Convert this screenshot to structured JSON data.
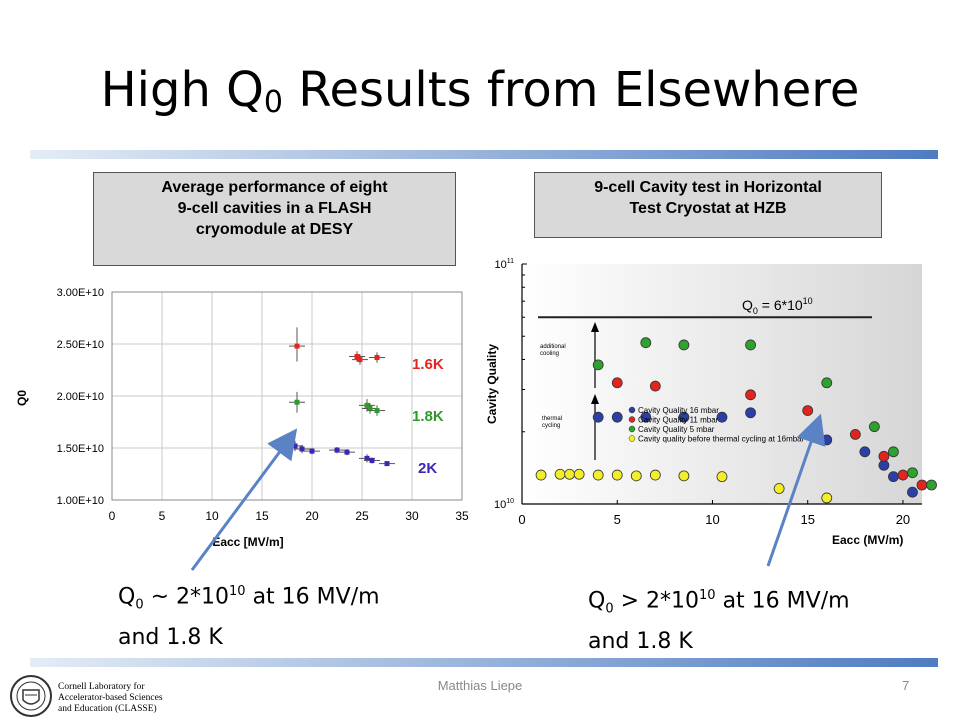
{
  "slide": {
    "title_main": "High Q",
    "title_sub": "0",
    "title_rest": " Results from Elsewhere",
    "footer": "Matthias Liepe",
    "page": "7",
    "logo_lines": [
      "Cornell Laboratory for",
      "Accelerator-based Sciences",
      "and Education (CLASSE)"
    ]
  },
  "left": {
    "box_lines": [
      "Average performance of eight",
      "9-cell cavities in a FLASH",
      "cryomodule at DESY"
    ],
    "note": {
      "line1_a": "Q",
      "sub": "0",
      "line1_b": " ~ 2*10",
      "sup": "10",
      "line1_c": " at 16 MV/m",
      "line2": "and 1.8 K"
    }
  },
  "right": {
    "box_lines": [
      "9-cell Cavity test in Horizontal",
      "Test Cryostat at HZB"
    ],
    "note": {
      "line1_a": "Q",
      "sub": "0",
      "line1_b": " > 2*10",
      "sup": "10",
      "line1_c": " at 16 MV/m",
      "line2": "and 1.8 K"
    }
  },
  "chart_data": [
    {
      "type": "scatter",
      "xlabel": "Eacc [MV/m]",
      "ylabel": "Q0",
      "xlim": [
        0,
        35
      ],
      "ylim": [
        10000000000.0,
        30000000000.0
      ],
      "x_ticks": [
        "0",
        "5",
        "10",
        "15",
        "20",
        "25",
        "30",
        "35"
      ],
      "y_ticks": [
        "1.00E+10",
        "1.50E+10",
        "2.00E+10",
        "2.50E+10",
        "3.00E+10"
      ],
      "grid": true,
      "series": [
        {
          "name": "1.6K",
          "color": "#e8231e",
          "points": [
            [
              18.5,
              24800000000.0
            ],
            [
              24.5,
              23800000000.0
            ],
            [
              24.8,
              23500000000.0
            ],
            [
              26.5,
              23700000000.0
            ]
          ],
          "yerr": [
            [
              1800000000.0,
              1500000000.0
            ],
            [
              500000000.0,
              500000000.0
            ],
            [
              500000000.0,
              500000000.0
            ],
            [
              500000000.0,
              500000000.0
            ]
          ]
        },
        {
          "name": "1.8K",
          "color": "#2e9a2a",
          "points": [
            [
              18.5,
              19400000000.0
            ],
            [
              25.5,
              19100000000.0
            ],
            [
              25.8,
              18800000000.0
            ],
            [
              26.5,
              18600000000.0
            ]
          ],
          "yerr": [
            [
              1000000000.0,
              1000000000.0
            ],
            [
              600000000.0,
              600000000.0
            ],
            [
              500000000.0,
              500000000.0
            ],
            [
              500000000.0,
              500000000.0
            ]
          ]
        },
        {
          "name": "2K",
          "color": "#3a27b8",
          "points": [
            [
              18.3,
              15200000000.0
            ],
            [
              19.0,
              14900000000.0
            ],
            [
              20.0,
              14700000000.0
            ],
            [
              22.5,
              14800000000.0
            ],
            [
              23.5,
              14600000000.0
            ],
            [
              25.5,
              14000000000.0
            ],
            [
              26.0,
              13800000000.0
            ],
            [
              27.5,
              13500000000.0
            ]
          ],
          "yerr": [
            [
              500000000.0,
              500000000.0
            ],
            [
              400000000.0,
              400000000.0
            ],
            [
              300000000.0,
              300000000.0
            ],
            [
              300000000.0,
              300000000.0
            ],
            [
              300000000.0,
              300000000.0
            ],
            [
              400000000.0,
              400000000.0
            ],
            [
              300000000.0,
              300000000.0
            ],
            [
              200000000.0,
              200000000.0
            ]
          ]
        }
      ]
    },
    {
      "type": "scatter",
      "xlabel": "Eacc (MV/m)",
      "ylabel": "Cavity Quality",
      "xlim": [
        0,
        21
      ],
      "ylim_log": [
        10000000000.0,
        100000000000.0
      ],
      "y_scale": "log",
      "x_ticks": [
        "0",
        "5",
        "10",
        "15",
        "20"
      ],
      "y_tick_base": "10",
      "y_tick_exps": [
        "10",
        "11"
      ],
      "annotation": "Q0 = 6*10^10",
      "annotation_parts": {
        "a": "Q",
        "sub": "0",
        "b": " = 6*10",
        "sup": "10"
      },
      "level_line": 60000000000.0,
      "side_labels": [
        [
          "additional",
          "cooling"
        ],
        [
          "thermal",
          "cycling"
        ]
      ],
      "legend_position": "center",
      "series": [
        {
          "name": "Cavity Quality 16 mbar",
          "color": "#2a3fa8",
          "points": [
            [
              4.0,
              23000000000.0
            ],
            [
              5.0,
              23000000000.0
            ],
            [
              6.5,
              23000000000.0
            ],
            [
              8.5,
              23000000000.0
            ],
            [
              10.5,
              23000000000.0
            ],
            [
              12.0,
              24000000000.0
            ],
            [
              16.0,
              18500000000.0
            ],
            [
              18.0,
              16500000000.0
            ],
            [
              19.0,
              14500000000.0
            ],
            [
              19.5,
              13000000000.0
            ],
            [
              20.5,
              11200000000.0
            ]
          ]
        },
        {
          "name": "Cavity Quality 11 mbar",
          "color": "#e0251f",
          "points": [
            [
              5.0,
              32000000000.0
            ],
            [
              7.0,
              31000000000.0
            ],
            [
              12.0,
              28500000000.0
            ],
            [
              15.0,
              24500000000.0
            ],
            [
              17.5,
              19500000000.0
            ],
            [
              19.0,
              15800000000.0
            ],
            [
              20.0,
              13200000000.0
            ],
            [
              21.0,
              12000000000.0
            ]
          ]
        },
        {
          "name": "Cavity Quality 5 mbar",
          "color": "#2ea12e",
          "points": [
            [
              4.0,
              38000000000.0
            ],
            [
              6.5,
              47000000000.0
            ],
            [
              8.5,
              46000000000.0
            ],
            [
              12.0,
              46000000000.0
            ],
            [
              16.0,
              32000000000.0
            ],
            [
              18.5,
              21000000000.0
            ],
            [
              19.5,
              16500000000.0
            ],
            [
              20.5,
              13500000000.0
            ],
            [
              21.5,
              12000000000.0
            ]
          ]
        },
        {
          "name": "Cavity quality before thermal cycling at 16mbar",
          "color": "#f2ef2a",
          "points": [
            [
              1.0,
              13200000000.0
            ],
            [
              2.0,
              13300000000.0
            ],
            [
              2.5,
              13300000000.0
            ],
            [
              3.0,
              13300000000.0
            ],
            [
              4.0,
              13200000000.0
            ],
            [
              5.0,
              13200000000.0
            ],
            [
              6.0,
              13100000000.0
            ],
            [
              7.0,
              13200000000.0
            ],
            [
              8.5,
              13100000000.0
            ],
            [
              10.5,
              13000000000.0
            ],
            [
              13.5,
              11600000000.0
            ],
            [
              16.0,
              10600000000.0
            ]
          ]
        }
      ],
      "curve_labels": [
        "1.6K",
        "1.8K",
        "2K"
      ]
    }
  ]
}
